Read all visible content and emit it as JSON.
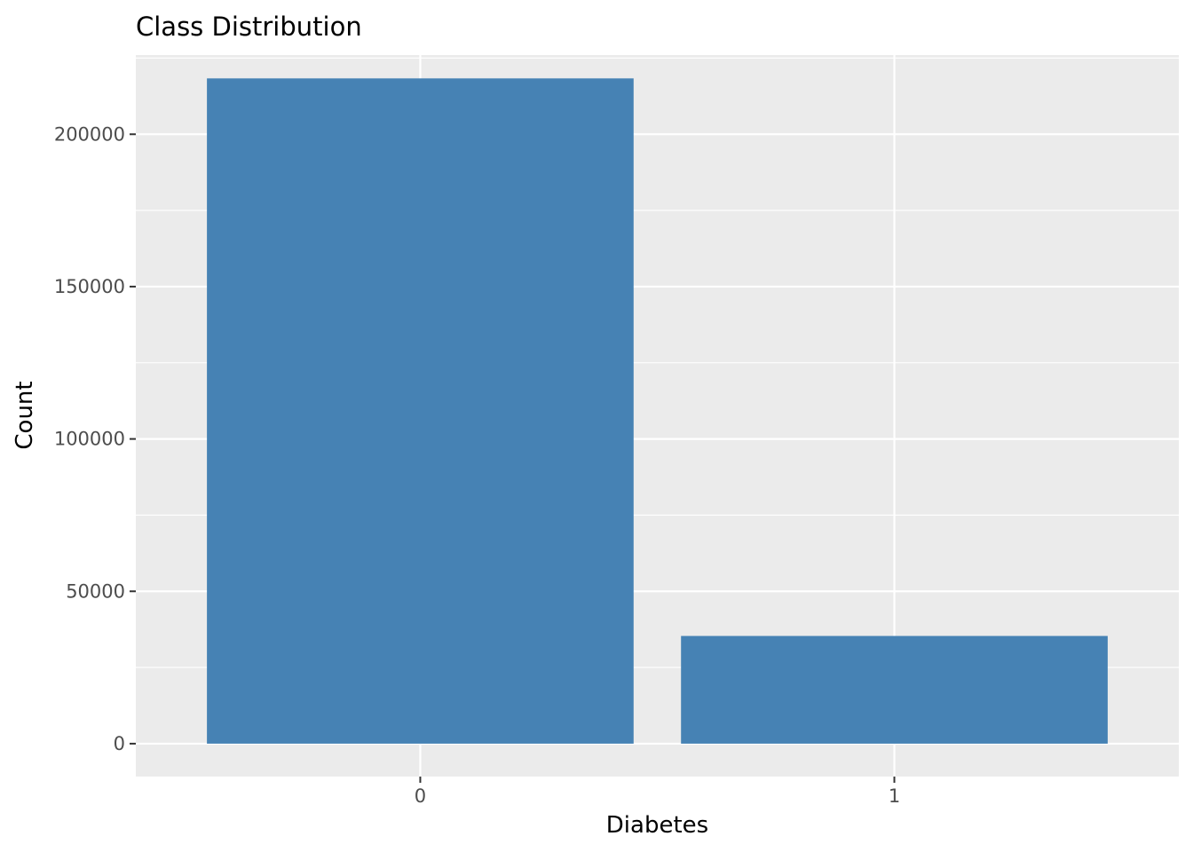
{
  "chart_data": {
    "type": "bar",
    "title": "Class Distribution",
    "xlabel": "Diabetes",
    "ylabel": "Count",
    "categories": [
      "0",
      "1"
    ],
    "values": [
      218334,
      35346
    ],
    "ylim": [
      -10800,
      226000
    ],
    "yticks": [
      0,
      50000,
      100000,
      150000,
      200000
    ],
    "ytick_labels": [
      "0",
      "50000",
      "100000",
      "150000",
      "200000"
    ],
    "grid": true,
    "bar_color": "#4682b4",
    "panel_background": "#ebebeb",
    "grid_color": "#ffffff",
    "legend": "none"
  }
}
